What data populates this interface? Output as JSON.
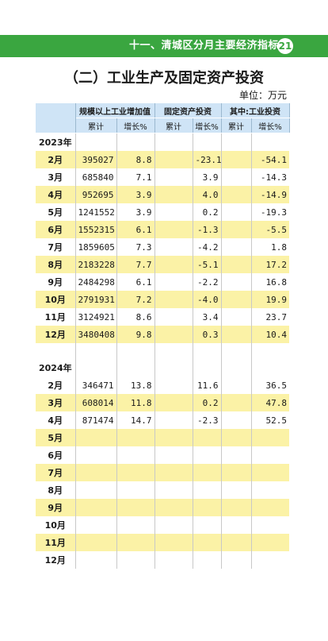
{
  "header": {
    "chapter": "十一、清城区分月主要经济指标",
    "page_number": "21"
  },
  "section_title": "（二）工业生产及固定资产投资",
  "unit": "单位：万元",
  "table": {
    "group_headers": [
      "规模以上工业增加值",
      "固定资产投资",
      "其中:工业投资"
    ],
    "sub_headers": [
      "累计",
      "增长%",
      "累计",
      "增长%",
      "累计",
      "增长%"
    ],
    "rows": [
      {
        "type": "year",
        "label": "2023年"
      },
      {
        "type": "data",
        "label": "2月",
        "cells": [
          "395027",
          "8.8",
          "",
          "-23.1",
          "",
          "-54.1"
        ],
        "highlight": true
      },
      {
        "type": "data",
        "label": "3月",
        "cells": [
          "685840",
          "7.1",
          "",
          "3.9",
          "",
          "-14.3"
        ],
        "highlight": false
      },
      {
        "type": "data",
        "label": "4月",
        "cells": [
          "952695",
          "3.9",
          "",
          "4.0",
          "",
          "-14.9"
        ],
        "highlight": true
      },
      {
        "type": "data",
        "label": "5月",
        "cells": [
          "1241552",
          "3.9",
          "",
          "0.2",
          "",
          "-19.3"
        ],
        "highlight": false
      },
      {
        "type": "data",
        "label": "6月",
        "cells": [
          "1552315",
          "6.1",
          "",
          "-1.3",
          "",
          "-5.5"
        ],
        "highlight": true
      },
      {
        "type": "data",
        "label": "7月",
        "cells": [
          "1859605",
          "7.3",
          "",
          "-4.2",
          "",
          "1.8"
        ],
        "highlight": false
      },
      {
        "type": "data",
        "label": "8月",
        "cells": [
          "2183228",
          "7.7",
          "",
          "-5.1",
          "",
          "17.2"
        ],
        "highlight": true
      },
      {
        "type": "data",
        "label": "9月",
        "cells": [
          "2484298",
          "6.1",
          "",
          "-2.2",
          "",
          "16.8"
        ],
        "highlight": false
      },
      {
        "type": "data",
        "label": "10月",
        "cells": [
          "2791931",
          "7.2",
          "",
          "-4.0",
          "",
          "19.9"
        ],
        "highlight": true
      },
      {
        "type": "data",
        "label": "11月",
        "cells": [
          "3124921",
          "8.6",
          "",
          "3.4",
          "",
          "23.7"
        ],
        "highlight": false
      },
      {
        "type": "data",
        "label": "12月",
        "cells": [
          "3480408",
          "9.8",
          "",
          "0.3",
          "",
          "10.4"
        ],
        "highlight": true
      },
      {
        "type": "blank",
        "highlight": false
      },
      {
        "type": "year",
        "label": "2024年",
        "highlight": true
      },
      {
        "type": "data",
        "label": "2月",
        "cells": [
          "346471",
          "13.8",
          "",
          "11.6",
          "",
          "36.5"
        ],
        "highlight": false
      },
      {
        "type": "data",
        "label": "3月",
        "cells": [
          "608014",
          "11.8",
          "",
          "0.2",
          "",
          "47.8"
        ],
        "highlight": true
      },
      {
        "type": "data",
        "label": "4月",
        "cells": [
          "871474",
          "14.7",
          "",
          "-2.3",
          "",
          "52.5"
        ],
        "highlight": false
      },
      {
        "type": "data",
        "label": "5月",
        "cells": [
          "",
          "",
          "",
          "",
          "",
          ""
        ],
        "highlight": true
      },
      {
        "type": "data",
        "label": "6月",
        "cells": [
          "",
          "",
          "",
          "",
          "",
          ""
        ],
        "highlight": false
      },
      {
        "type": "data",
        "label": "7月",
        "cells": [
          "",
          "",
          "",
          "",
          "",
          ""
        ],
        "highlight": true
      },
      {
        "type": "data",
        "label": "8月",
        "cells": [
          "",
          "",
          "",
          "",
          "",
          ""
        ],
        "highlight": false
      },
      {
        "type": "data",
        "label": "9月",
        "cells": [
          "",
          "",
          "",
          "",
          "",
          ""
        ],
        "highlight": true
      },
      {
        "type": "data",
        "label": "10月",
        "cells": [
          "",
          "",
          "",
          "",
          "",
          ""
        ],
        "highlight": false
      },
      {
        "type": "data",
        "label": "11月",
        "cells": [
          "",
          "",
          "",
          "",
          "",
          ""
        ],
        "highlight": true
      },
      {
        "type": "data",
        "label": "12月",
        "cells": [
          "",
          "",
          "",
          "",
          "",
          ""
        ],
        "highlight": false
      }
    ]
  },
  "colors": {
    "banner_green": "#3aa640",
    "header_blue": "#cfe4f6",
    "row_highlight_yellow": "#fbf2a6"
  }
}
